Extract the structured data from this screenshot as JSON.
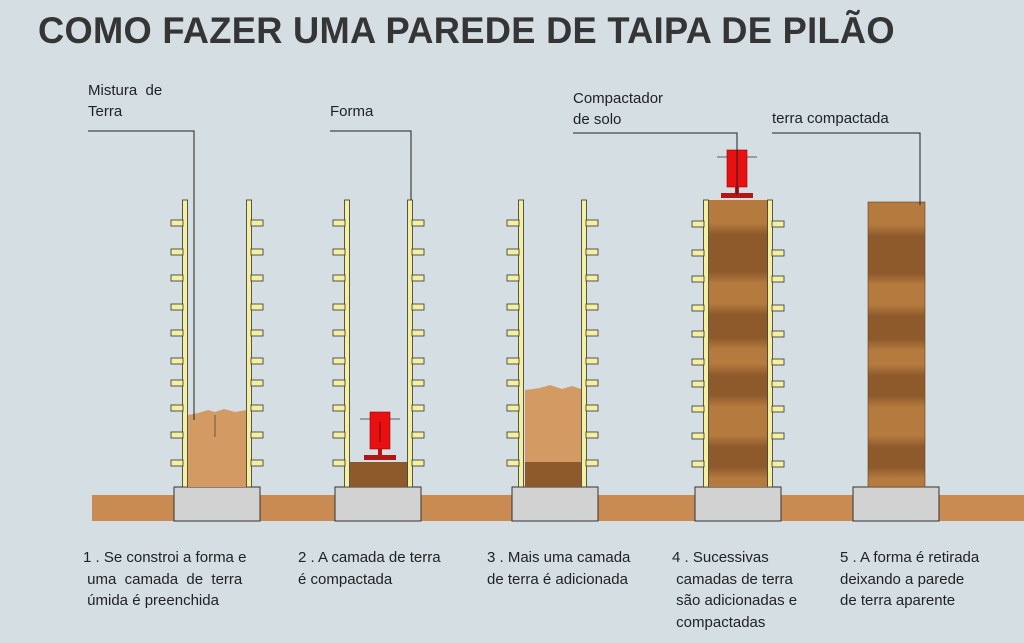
{
  "title": "COMO FAZER UMA PAREDE DE TAIPA DE PILÃO",
  "labels": {
    "mixture": "Mistura  de\nTerra",
    "form": "Forma",
    "compactor": "Compactador\nde solo",
    "compacted_earth": "terra compactada"
  },
  "steps": [
    {
      "caption": "1 . Se constroi a forma e\n uma  camada  de  terra\n úmida é preenchida"
    },
    {
      "caption": "2 . A camada de terra\né compactada"
    },
    {
      "caption": "3 . Mais uma camada\nde terra é adicionada"
    },
    {
      "caption": "4 . Sucessivas\n camadas de terra\n são adicionadas e\n compactadas"
    },
    {
      "caption": "5 . A forma é retirada\ndeixando a parede\nde terra aparente"
    }
  ],
  "colors": {
    "background": "#d4dee3",
    "ground": "#c98b52",
    "footing": "#d2d2d2",
    "form_rail": "#f4f0a0",
    "loose_earth": "#d39b63",
    "compacted_light": "#b57a3e",
    "compacted_dark": "#8e5a2c",
    "compactor": "#e81010"
  }
}
